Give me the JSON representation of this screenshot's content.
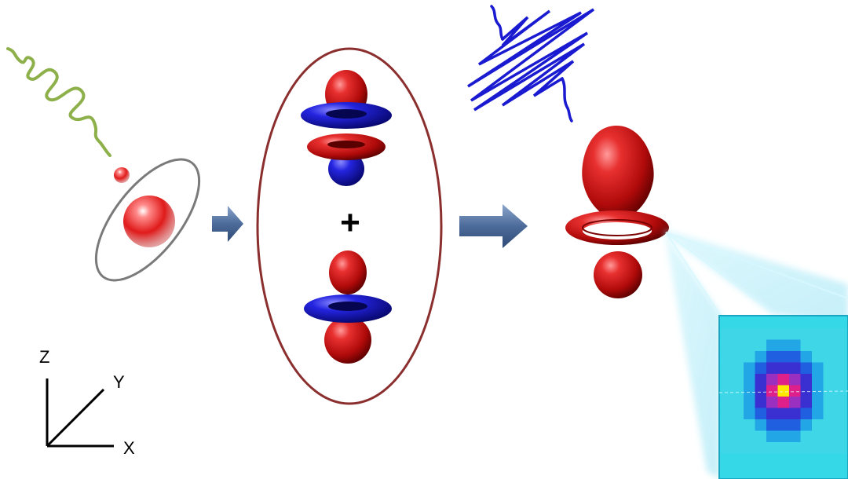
{
  "axes": {
    "z_label": "Z",
    "y_label": "Y",
    "x_label": "X"
  },
  "superposition": {
    "operator": "+"
  },
  "colors": {
    "lobe_red": "#d01818",
    "lobe_blue": "#1a1ad0",
    "green_pulse": "#8db04a",
    "blue_pulse": "#1a1ad0",
    "arrow": "#5b79a6",
    "ellipse": "#8b2e2e",
    "detector_bg": "#35d8e6",
    "beam": "#9fe6f5"
  },
  "icons": {
    "atom": "atom-icon",
    "arrow": "arrow-right-icon",
    "detector": "pixel-detector-icon"
  },
  "detector_grid": [
    [
      0,
      0,
      0,
      0,
      0,
      0,
      0,
      0,
      0,
      0,
      0
    ],
    [
      0,
      0,
      0,
      0,
      1,
      1,
      1,
      0,
      0,
      0,
      0
    ],
    [
      0,
      0,
      0,
      1,
      2,
      2,
      2,
      1,
      0,
      0,
      0
    ],
    [
      0,
      0,
      1,
      2,
      3,
      3,
      3,
      2,
      1,
      0,
      0
    ],
    [
      0,
      0,
      1,
      3,
      4,
      5,
      4,
      3,
      1,
      0,
      0
    ],
    [
      0,
      0,
      1,
      3,
      5,
      6,
      5,
      3,
      1,
      0,
      0
    ],
    [
      0,
      0,
      1,
      3,
      4,
      5,
      4,
      3,
      1,
      0,
      0
    ],
    [
      0,
      0,
      1,
      2,
      3,
      3,
      3,
      2,
      1,
      0,
      0
    ],
    [
      0,
      0,
      0,
      1,
      2,
      2,
      2,
      1,
      0,
      0,
      0
    ],
    [
      0,
      0,
      0,
      0,
      1,
      1,
      1,
      0,
      0,
      0,
      0
    ],
    [
      0,
      0,
      0,
      0,
      0,
      0,
      0,
      0,
      0,
      0,
      0
    ]
  ],
  "detector_palette": [
    "#3fd6e8",
    "#22a6e6",
    "#2060e0",
    "#3a2fd0",
    "#9a2fc0",
    "#e0208a",
    "#ffe800"
  ]
}
